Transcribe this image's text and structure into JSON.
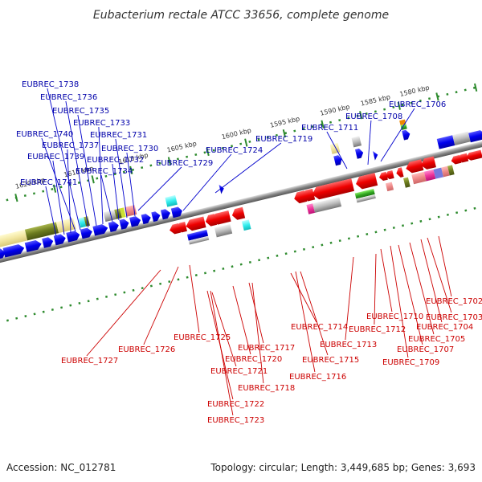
{
  "title": "Eubacterium rectale ATCC 33656, complete genome",
  "footer": {
    "accession": "Accession: NC_012781",
    "summary": "Topology: circular; Length: 3,449,685 bp; Genes: 3,693"
  },
  "axis_ticks": [
    "1580 kbp",
    "1585 kbp",
    "1590 kbp",
    "1595 kbp",
    "1600 kbp",
    "1605 kbp",
    "1610 kbp",
    "1615 kbp",
    "1620 kbp"
  ],
  "colors": {
    "forward": "#0000ee",
    "reverse": "#ee0000",
    "top_label": "#0000aa",
    "bottom_label": "#cc0000",
    "backbone": "#888888",
    "tick": "#2e8b2e"
  },
  "forward_labels": [
    "EUBREC_1741",
    "EUBREC_1739",
    "EUBREC_1737",
    "EUBREC_1740",
    "EUBREC_1738",
    "EUBREC_1736",
    "EUBREC_1735",
    "EUBREC_1733",
    "EUBREC_1734",
    "EUBREC_1732",
    "EUBREC_1731",
    "EUBREC_1730",
    "EUBREC_1729",
    "EUBREC_1724",
    "EUBREC_1719",
    "EUBREC_1711",
    "EUBREC_1708",
    "EUBREC_1706"
  ],
  "reverse_labels": [
    "EUBREC_1727",
    "EUBREC_1726",
    "EUBREC_1725",
    "EUBREC_1722",
    "EUBREC_1723",
    "EUBREC_1721",
    "EUBREC_1720",
    "EUBREC_1717",
    "EUBREC_1718",
    "EUBREC_1714",
    "EUBREC_1716",
    "EUBREC_1715",
    "EUBREC_1713",
    "EUBREC_1712",
    "EUBREC_1710",
    "EUBREC_1709",
    "EUBREC_1707",
    "EUBREC_1705",
    "EUBREC_1704",
    "EUBREC_1703",
    "EUBREC_1702"
  ]
}
